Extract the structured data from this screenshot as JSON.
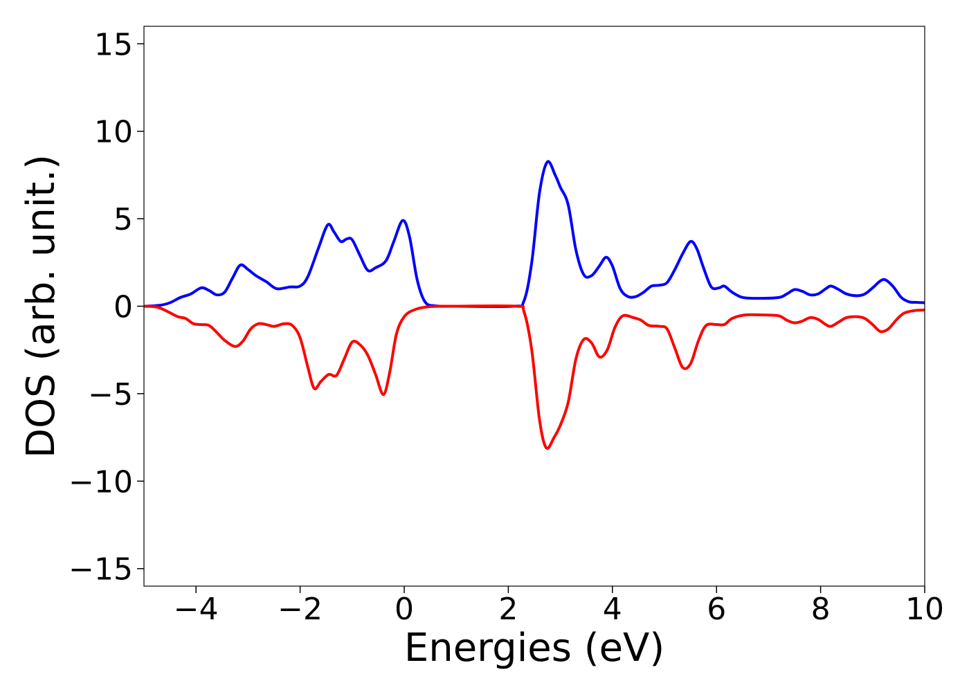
{
  "chart_data": {
    "type": "line",
    "xlabel": "Energies (eV)",
    "ylabel": "DOS (arb. unit.)",
    "xlim": [
      -5,
      10
    ],
    "ylim": [
      -16,
      16
    ],
    "x_ticks": [
      -4,
      -2,
      0,
      2,
      4,
      6,
      8,
      10
    ],
    "x_tick_labels": [
      "−4",
      "−2",
      "0",
      "2",
      "4",
      "6",
      "8",
      "10"
    ],
    "y_ticks": [
      15,
      10,
      5,
      0,
      -5,
      -10,
      -15
    ],
    "y_tick_labels": [
      "15",
      "10",
      "5",
      "0",
      "−5",
      "−10",
      "−15"
    ],
    "grid": false,
    "series": [
      {
        "color": "#0000ff",
        "points": [
          [
            -5.0,
            0.0
          ],
          [
            -4.7,
            0.05
          ],
          [
            -4.5,
            0.2
          ],
          [
            -4.3,
            0.5
          ],
          [
            -4.1,
            0.7
          ],
          [
            -3.9,
            1.05
          ],
          [
            -3.75,
            0.9
          ],
          [
            -3.6,
            0.65
          ],
          [
            -3.45,
            0.8
          ],
          [
            -3.3,
            1.6
          ],
          [
            -3.15,
            2.35
          ],
          [
            -3.0,
            2.1
          ],
          [
            -2.85,
            1.75
          ],
          [
            -2.65,
            1.4
          ],
          [
            -2.45,
            1.0
          ],
          [
            -2.2,
            1.1
          ],
          [
            -2.0,
            1.15
          ],
          [
            -1.85,
            1.7
          ],
          [
            -1.65,
            3.3
          ],
          [
            -1.47,
            4.65
          ],
          [
            -1.35,
            4.25
          ],
          [
            -1.22,
            3.7
          ],
          [
            -1.1,
            3.85
          ],
          [
            -1.0,
            3.8
          ],
          [
            -0.85,
            2.9
          ],
          [
            -0.7,
            2.05
          ],
          [
            -0.55,
            2.2
          ],
          [
            -0.35,
            2.6
          ],
          [
            -0.2,
            3.7
          ],
          [
            -0.03,
            4.9
          ],
          [
            0.1,
            4.0
          ],
          [
            0.25,
            1.5
          ],
          [
            0.4,
            0.25
          ],
          [
            0.6,
            0.02
          ],
          [
            1.0,
            0.0
          ],
          [
            2.1,
            0.0
          ],
          [
            2.3,
            0.3
          ],
          [
            2.45,
            2.5
          ],
          [
            2.6,
            6.5
          ],
          [
            2.75,
            8.25
          ],
          [
            2.9,
            7.5
          ],
          [
            3.0,
            6.8
          ],
          [
            3.15,
            5.8
          ],
          [
            3.3,
            3.2
          ],
          [
            3.45,
            1.8
          ],
          [
            3.6,
            1.75
          ],
          [
            3.75,
            2.3
          ],
          [
            3.88,
            2.8
          ],
          [
            4.0,
            2.3
          ],
          [
            4.15,
            1.0
          ],
          [
            4.3,
            0.55
          ],
          [
            4.45,
            0.55
          ],
          [
            4.6,
            0.8
          ],
          [
            4.75,
            1.15
          ],
          [
            4.9,
            1.2
          ],
          [
            5.05,
            1.35
          ],
          [
            5.2,
            2.1
          ],
          [
            5.35,
            3.0
          ],
          [
            5.5,
            3.7
          ],
          [
            5.62,
            3.3
          ],
          [
            5.75,
            2.2
          ],
          [
            5.9,
            1.1
          ],
          [
            6.05,
            1.05
          ],
          [
            6.15,
            1.15
          ],
          [
            6.3,
            0.8
          ],
          [
            6.5,
            0.5
          ],
          [
            6.8,
            0.45
          ],
          [
            7.2,
            0.5
          ],
          [
            7.35,
            0.7
          ],
          [
            7.5,
            0.95
          ],
          [
            7.65,
            0.85
          ],
          [
            7.8,
            0.65
          ],
          [
            7.95,
            0.7
          ],
          [
            8.1,
            1.0
          ],
          [
            8.2,
            1.15
          ],
          [
            8.35,
            0.95
          ],
          [
            8.5,
            0.7
          ],
          [
            8.7,
            0.6
          ],
          [
            8.85,
            0.7
          ],
          [
            9.0,
            1.05
          ],
          [
            9.15,
            1.45
          ],
          [
            9.25,
            1.5
          ],
          [
            9.4,
            1.1
          ],
          [
            9.55,
            0.5
          ],
          [
            9.7,
            0.25
          ],
          [
            9.85,
            0.22
          ],
          [
            10.0,
            0.2
          ]
        ]
      },
      {
        "color": "#ff0000",
        "points": [
          [
            -5.0,
            0.0
          ],
          [
            -4.75,
            -0.05
          ],
          [
            -4.55,
            -0.3
          ],
          [
            -4.35,
            -0.6
          ],
          [
            -4.2,
            -0.7
          ],
          [
            -4.05,
            -1.0
          ],
          [
            -3.9,
            -1.05
          ],
          [
            -3.75,
            -1.1
          ],
          [
            -3.6,
            -1.5
          ],
          [
            -3.45,
            -1.95
          ],
          [
            -3.25,
            -2.3
          ],
          [
            -3.1,
            -2.0
          ],
          [
            -2.95,
            -1.3
          ],
          [
            -2.8,
            -1.0
          ],
          [
            -2.65,
            -1.05
          ],
          [
            -2.5,
            -1.15
          ],
          [
            -2.3,
            -1.0
          ],
          [
            -2.15,
            -1.1
          ],
          [
            -2.0,
            -1.8
          ],
          [
            -1.85,
            -3.5
          ],
          [
            -1.73,
            -4.7
          ],
          [
            -1.6,
            -4.3
          ],
          [
            -1.45,
            -3.9
          ],
          [
            -1.3,
            -3.95
          ],
          [
            -1.15,
            -3.0
          ],
          [
            -1.0,
            -2.05
          ],
          [
            -0.85,
            -2.2
          ],
          [
            -0.7,
            -2.8
          ],
          [
            -0.55,
            -3.9
          ],
          [
            -0.4,
            -5.05
          ],
          [
            -0.28,
            -3.8
          ],
          [
            -0.15,
            -1.6
          ],
          [
            0.0,
            -0.6
          ],
          [
            0.2,
            -0.2
          ],
          [
            0.5,
            -0.02
          ],
          [
            1.0,
            0.0
          ],
          [
            2.15,
            0.0
          ],
          [
            2.3,
            -0.3
          ],
          [
            2.45,
            -2.5
          ],
          [
            2.6,
            -6.5
          ],
          [
            2.73,
            -8.1
          ],
          [
            2.88,
            -7.5
          ],
          [
            3.0,
            -6.8
          ],
          [
            3.15,
            -5.5
          ],
          [
            3.3,
            -3.0
          ],
          [
            3.45,
            -1.9
          ],
          [
            3.6,
            -2.1
          ],
          [
            3.75,
            -2.9
          ],
          [
            3.9,
            -2.5
          ],
          [
            4.05,
            -1.2
          ],
          [
            4.2,
            -0.55
          ],
          [
            4.4,
            -0.65
          ],
          [
            4.55,
            -0.8
          ],
          [
            4.7,
            -1.1
          ],
          [
            4.9,
            -1.15
          ],
          [
            5.05,
            -1.3
          ],
          [
            5.2,
            -2.4
          ],
          [
            5.35,
            -3.5
          ],
          [
            5.5,
            -3.3
          ],
          [
            5.65,
            -2.0
          ],
          [
            5.8,
            -1.1
          ],
          [
            6.0,
            -1.05
          ],
          [
            6.15,
            -1.05
          ],
          [
            6.3,
            -0.7
          ],
          [
            6.55,
            -0.5
          ],
          [
            6.9,
            -0.5
          ],
          [
            7.2,
            -0.55
          ],
          [
            7.35,
            -0.8
          ],
          [
            7.5,
            -0.95
          ],
          [
            7.65,
            -0.85
          ],
          [
            7.8,
            -0.65
          ],
          [
            7.95,
            -0.75
          ],
          [
            8.1,
            -1.05
          ],
          [
            8.2,
            -1.15
          ],
          [
            8.35,
            -0.9
          ],
          [
            8.5,
            -0.65
          ],
          [
            8.7,
            -0.6
          ],
          [
            8.85,
            -0.7
          ],
          [
            9.0,
            -1.05
          ],
          [
            9.15,
            -1.45
          ],
          [
            9.3,
            -1.3
          ],
          [
            9.45,
            -0.8
          ],
          [
            9.6,
            -0.4
          ],
          [
            9.8,
            -0.25
          ],
          [
            10.0,
            -0.22
          ]
        ]
      }
    ]
  }
}
